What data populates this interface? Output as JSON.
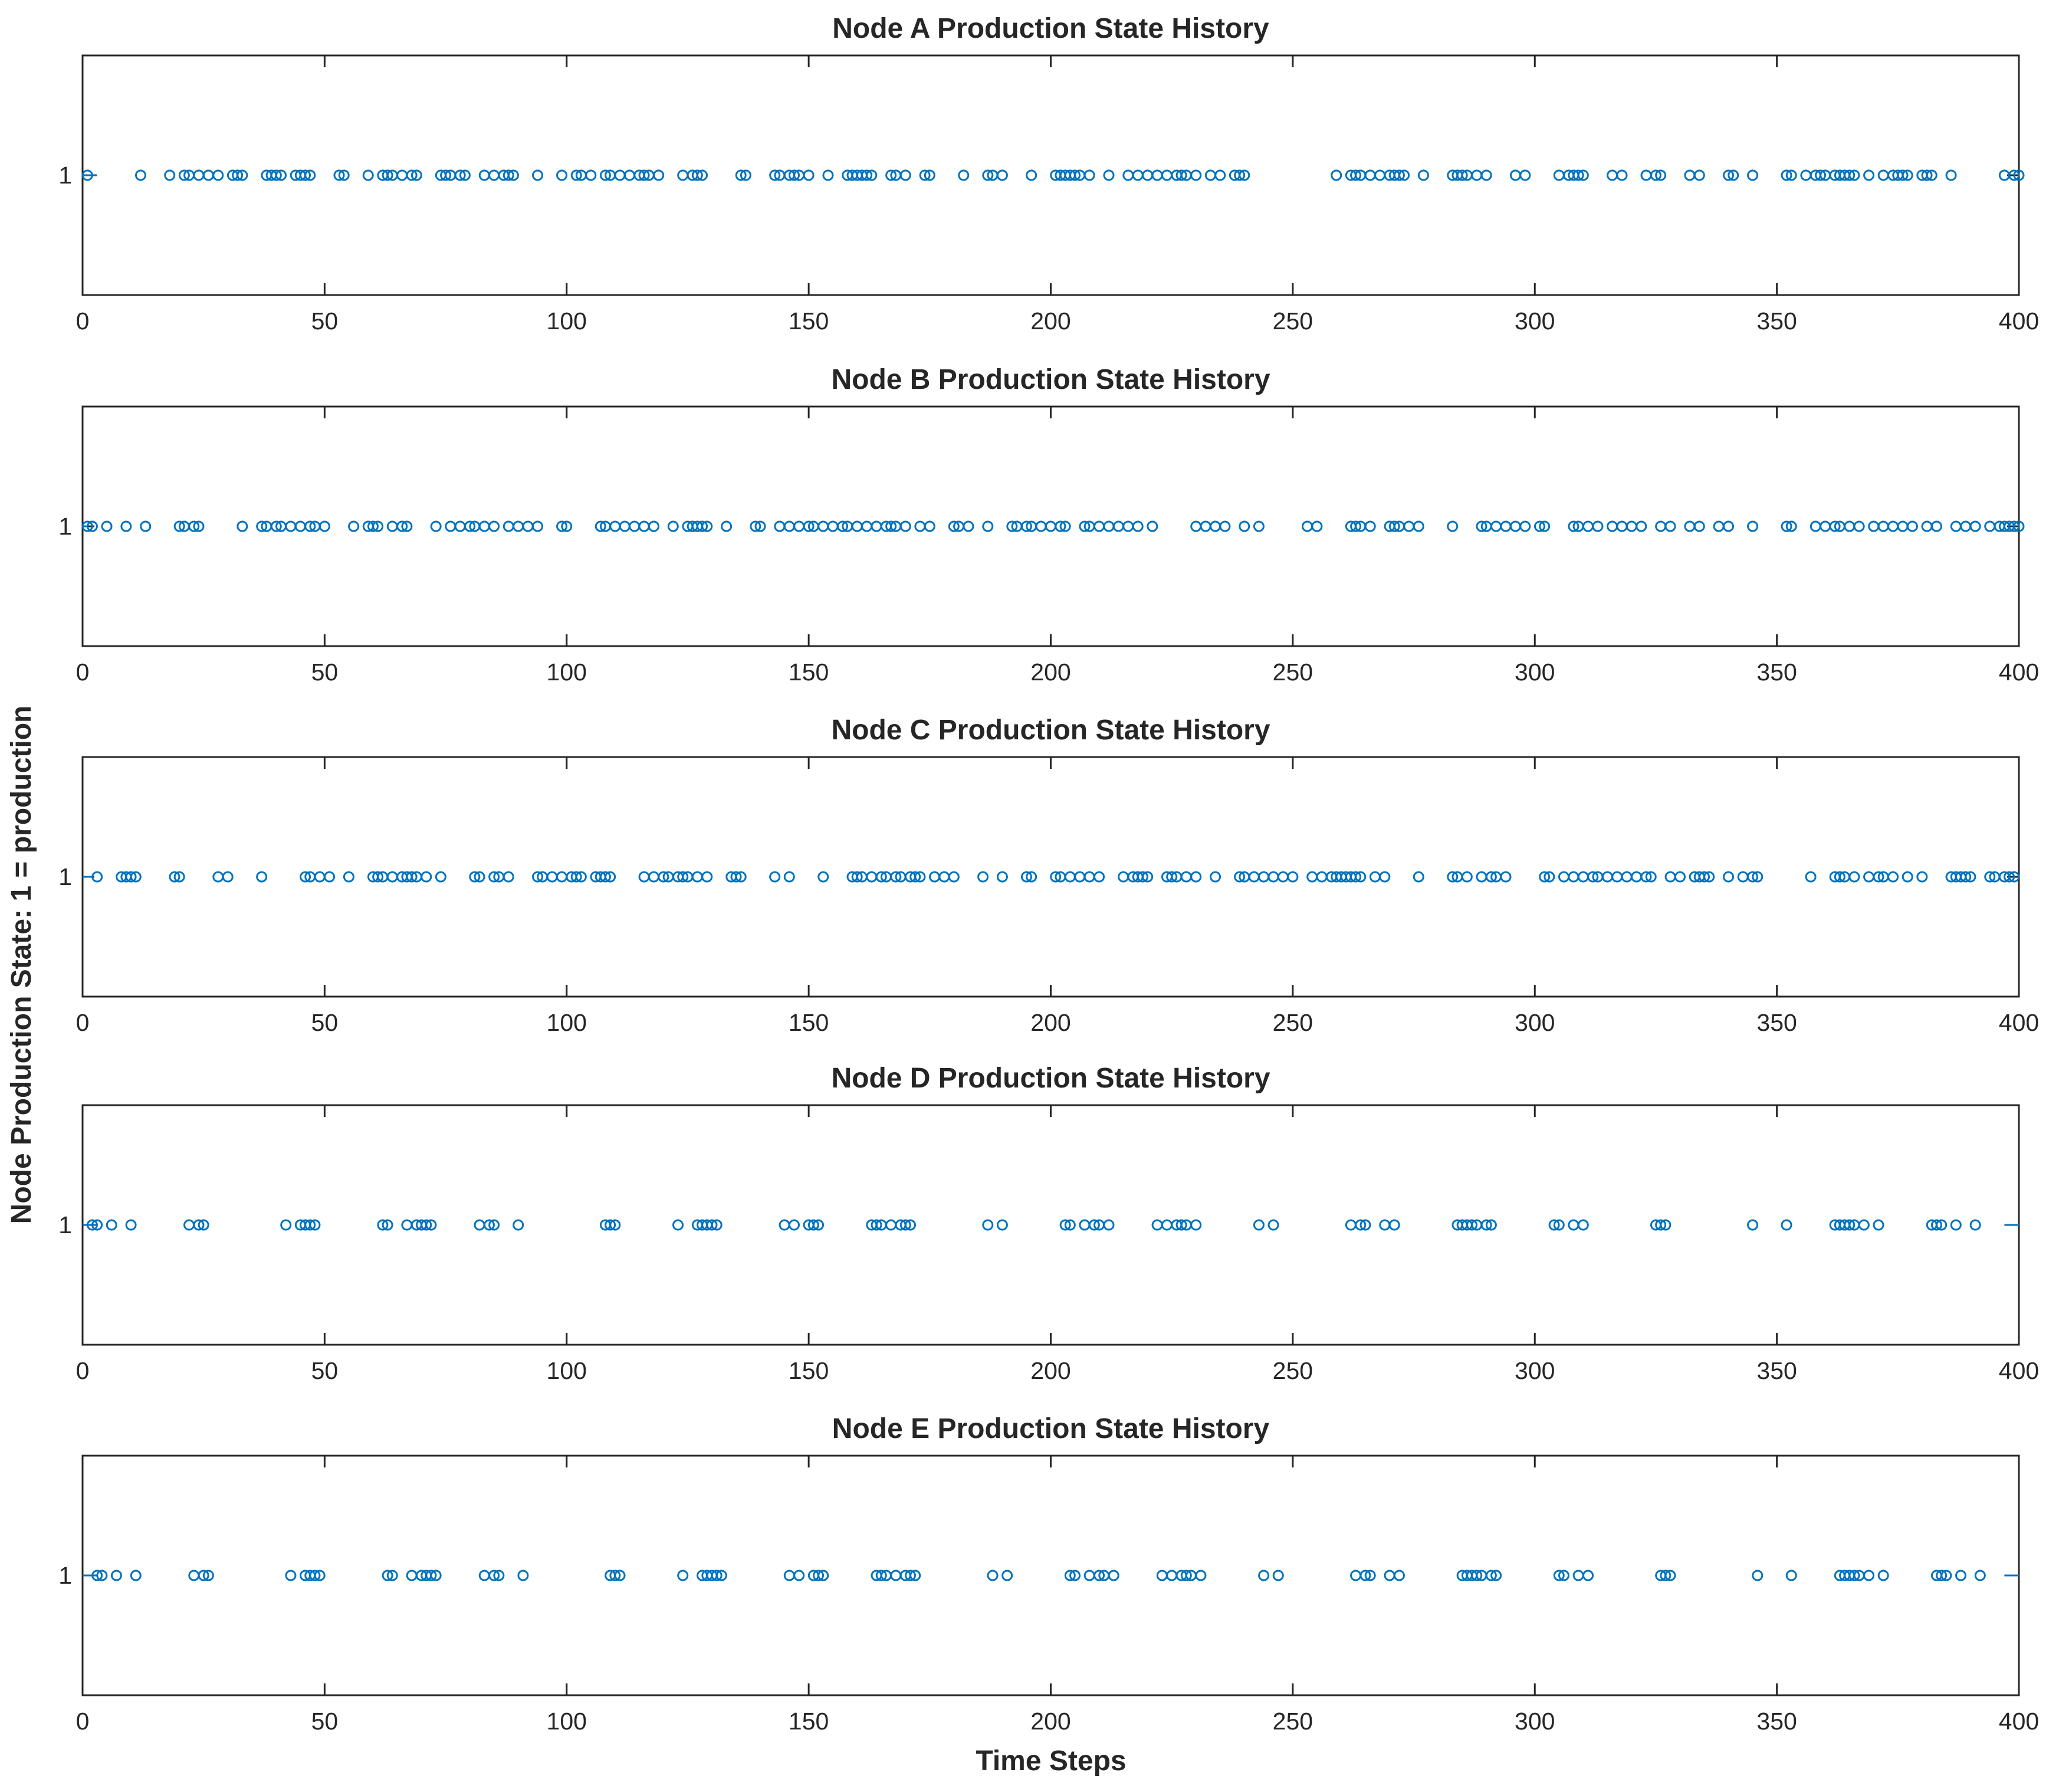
{
  "figure": {
    "ylabel": "Node Production State: 1 = production",
    "xlabel": "Time Steps"
  },
  "colors": {
    "marker": "#0072BD",
    "axis": "#262626",
    "background": "#ffffff"
  },
  "chart_data": [
    {
      "type": "scatter",
      "title": "Node A Production State History",
      "xlabel": "Time Steps",
      "ylabel": "Node Production State: 1 = production",
      "xlim": [
        0,
        400
      ],
      "xticks": [
        0,
        50,
        100,
        150,
        200,
        250,
        300,
        350,
        400
      ],
      "yticks": [
        1
      ],
      "y_value": 1,
      "baseline_to": 3,
      "x": [
        1,
        12,
        18,
        21,
        22,
        24,
        26,
        28,
        31,
        32,
        33,
        38,
        39,
        40,
        41,
        44,
        45,
        46,
        47,
        53,
        54,
        59,
        62,
        63,
        64,
        66,
        68,
        69,
        74,
        75,
        76,
        78,
        79,
        83,
        85,
        87,
        88,
        89,
        94,
        99,
        102,
        103,
        105,
        108,
        109,
        111,
        113,
        115,
        116,
        117,
        119,
        124,
        126,
        127,
        128,
        136,
        137,
        143,
        144,
        146,
        147,
        148,
        150,
        154,
        158,
        159,
        160,
        161,
        162,
        163,
        167,
        168,
        170,
        174,
        175,
        182,
        187,
        188,
        190,
        196,
        201,
        202,
        203,
        204,
        205,
        206,
        208,
        212,
        216,
        218,
        220,
        222,
        224,
        226,
        227,
        228,
        230,
        233,
        235,
        238,
        239,
        240,
        259,
        262,
        263,
        264,
        266,
        268,
        270,
        271,
        272,
        273,
        277,
        283,
        284,
        285,
        286,
        288,
        290,
        296,
        298,
        305,
        307,
        308,
        309,
        310,
        316,
        318,
        323,
        325,
        326,
        332,
        334,
        340,
        341,
        345,
        352,
        353,
        356,
        358,
        359,
        360,
        362,
        363,
        364,
        365,
        366,
        369,
        372,
        374,
        375,
        376,
        377,
        380,
        381,
        382,
        386,
        397,
        399,
        400
      ]
    },
    {
      "type": "scatter",
      "title": "Node B Production State History",
      "xlabel": "Time Steps",
      "ylabel": "Node Production State: 1 = production",
      "xlim": [
        0,
        400
      ],
      "xticks": [
        0,
        50,
        100,
        150,
        200,
        250,
        300,
        350,
        400
      ],
      "yticks": [
        1
      ],
      "y_value": 1,
      "baseline_to": 1,
      "x": [
        1,
        2,
        5,
        9,
        13,
        20,
        21,
        23,
        24,
        33,
        37,
        38,
        40,
        41,
        43,
        45,
        47,
        48,
        50,
        56,
        59,
        60,
        61,
        64,
        66,
        67,
        73,
        76,
        78,
        80,
        81,
        83,
        85,
        88,
        90,
        92,
        94,
        99,
        100,
        107,
        108,
        110,
        112,
        114,
        116,
        118,
        122,
        125,
        126,
        127,
        128,
        129,
        133,
        139,
        140,
        144,
        146,
        148,
        150,
        151,
        153,
        155,
        157,
        158,
        160,
        162,
        164,
        166,
        167,
        168,
        170,
        173,
        175,
        180,
        181,
        183,
        187,
        192,
        193,
        195,
        196,
        198,
        200,
        202,
        203,
        207,
        208,
        210,
        212,
        214,
        216,
        218,
        221,
        230,
        232,
        234,
        236,
        240,
        243,
        253,
        255,
        262,
        263,
        264,
        266,
        270,
        271,
        272,
        274,
        276,
        283,
        289,
        290,
        292,
        294,
        296,
        298,
        301,
        302,
        308,
        309,
        311,
        313,
        316,
        318,
        320,
        322,
        326,
        328,
        332,
        334,
        338,
        340,
        345,
        352,
        353,
        358,
        360,
        362,
        363,
        365,
        367,
        370,
        372,
        374,
        376,
        378,
        381,
        383,
        387,
        389,
        391,
        394,
        396,
        397,
        398,
        399,
        400
      ]
    },
    {
      "type": "scatter",
      "title": "Node C Production State History",
      "xlabel": "Time Steps",
      "ylabel": "Node Production State: 1 = production",
      "xlim": [
        0,
        400
      ],
      "xticks": [
        0,
        50,
        100,
        150,
        200,
        250,
        300,
        350,
        400
      ],
      "yticks": [
        1
      ],
      "y_value": 1,
      "baseline_to": 2,
      "x": [
        3,
        8,
        9,
        10,
        11,
        19,
        20,
        28,
        30,
        37,
        46,
        47,
        49,
        51,
        55,
        60,
        61,
        62,
        64,
        66,
        67,
        68,
        69,
        71,
        74,
        81,
        82,
        85,
        86,
        88,
        94,
        95,
        97,
        99,
        101,
        102,
        103,
        106,
        107,
        108,
        109,
        116,
        118,
        120,
        121,
        123,
        124,
        125,
        127,
        129,
        134,
        135,
        136,
        143,
        146,
        153,
        159,
        160,
        161,
        163,
        165,
        166,
        168,
        169,
        171,
        172,
        173,
        176,
        178,
        180,
        186,
        190,
        195,
        196,
        201,
        202,
        204,
        206,
        208,
        210,
        215,
        217,
        218,
        219,
        220,
        224,
        225,
        226,
        228,
        230,
        234,
        239,
        240,
        242,
        244,
        246,
        248,
        250,
        254,
        256,
        258,
        259,
        260,
        261,
        262,
        263,
        264,
        267,
        269,
        276,
        283,
        284,
        286,
        289,
        291,
        292,
        294,
        302,
        303,
        306,
        308,
        310,
        312,
        313,
        315,
        317,
        319,
        321,
        323,
        324,
        328,
        330,
        333,
        334,
        335,
        336,
        340,
        343,
        345,
        346,
        357,
        362,
        363,
        364,
        366,
        369,
        371,
        372,
        374,
        377,
        380,
        386,
        387,
        388,
        389,
        390,
        394,
        395,
        397,
        398,
        399
      ]
    },
    {
      "type": "scatter",
      "title": "Node D Production State History",
      "xlabel": "Time Steps",
      "ylabel": "Node Production State: 1 = production",
      "xlim": [
        0,
        400
      ],
      "xticks": [
        0,
        50,
        100,
        150,
        200,
        250,
        300,
        350,
        400
      ],
      "yticks": [
        1
      ],
      "y_value": 1,
      "baseline_to": 3,
      "baseline_right_from": 397,
      "x": [
        2,
        3,
        6,
        10,
        22,
        24,
        25,
        42,
        45,
        46,
        47,
        48,
        62,
        63,
        67,
        69,
        70,
        71,
        72,
        82,
        84,
        85,
        90,
        108,
        109,
        110,
        123,
        127,
        128,
        129,
        130,
        131,
        145,
        147,
        150,
        151,
        152,
        163,
        164,
        165,
        167,
        169,
        170,
        171,
        187,
        190,
        203,
        204,
        207,
        209,
        210,
        212,
        222,
        224,
        226,
        227,
        228,
        230,
        243,
        246,
        262,
        264,
        265,
        269,
        271,
        284,
        285,
        286,
        287,
        288,
        290,
        291,
        304,
        305,
        308,
        310,
        325,
        326,
        327,
        345,
        352,
        362,
        363,
        364,
        365,
        366,
        368,
        371,
        382,
        383,
        384,
        387,
        391
      ]
    },
    {
      "type": "scatter",
      "title": "Node E Production State History",
      "xlabel": "Time Steps",
      "ylabel": "Node Production State: 1 = production",
      "xlim": [
        0,
        400
      ],
      "xticks": [
        0,
        50,
        100,
        150,
        200,
        250,
        300,
        350,
        400
      ],
      "yticks": [
        1
      ],
      "y_value": 1,
      "baseline_to": 3,
      "baseline_right_from": 397,
      "x": [
        3,
        4,
        7,
        11,
        23,
        25,
        26,
        43,
        46,
        47,
        48,
        49,
        63,
        64,
        68,
        70,
        71,
        72,
        73,
        83,
        85,
        86,
        91,
        109,
        110,
        111,
        124,
        128,
        129,
        130,
        131,
        132,
        146,
        148,
        151,
        152,
        153,
        164,
        165,
        166,
        168,
        170,
        171,
        172,
        188,
        191,
        204,
        205,
        208,
        210,
        211,
        213,
        223,
        225,
        227,
        228,
        229,
        231,
        244,
        247,
        263,
        265,
        266,
        270,
        272,
        285,
        286,
        287,
        288,
        289,
        291,
        292,
        305,
        306,
        309,
        311,
        326,
        327,
        328,
        346,
        353,
        363,
        364,
        365,
        366,
        367,
        369,
        372,
        383,
        384,
        385,
        388,
        392
      ]
    }
  ]
}
